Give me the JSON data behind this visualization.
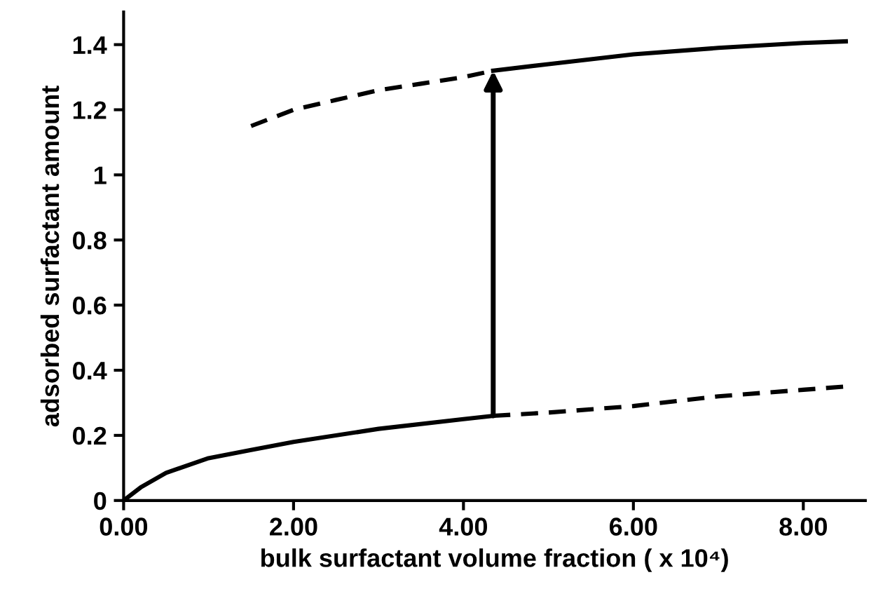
{
  "chart_data": {
    "type": "line",
    "xlabel": "bulk surfactant volume fraction ( x 10⁴)",
    "ylabel": "adsorbed surfactant amount",
    "xlim": [
      0,
      8.73
    ],
    "ylim": [
      0,
      1.5
    ],
    "xticks": [
      {
        "value": 0,
        "label": "0.00"
      },
      {
        "value": 2,
        "label": "2.00"
      },
      {
        "value": 4,
        "label": "4.00"
      },
      {
        "value": 6,
        "label": "6.00"
      },
      {
        "value": 8,
        "label": "8.00"
      }
    ],
    "yticks": [
      0,
      0.2,
      0.4,
      0.6,
      0.8,
      1,
      1.2,
      1.4
    ],
    "grid": false,
    "marker": "none",
    "series": [
      {
        "color": "#000000",
        "line_style": "solid",
        "x": [
          0,
          0.2,
          0.5,
          1,
          1.5,
          2,
          3,
          4,
          4.35
        ],
        "values": [
          0,
          0.04,
          0.085,
          0.13,
          0.155,
          0.18,
          0.22,
          0.25,
          0.26
        ]
      },
      {
        "color": "#000000",
        "line_style": "dashed",
        "x": [
          4.35,
          5,
          6,
          7,
          8,
          8.5
        ],
        "values": [
          0.26,
          0.27,
          0.29,
          0.32,
          0.34,
          0.35
        ]
      },
      {
        "color": "#000000",
        "line_style": "dashed",
        "x": [
          1.5,
          2,
          2.5,
          3,
          3.5,
          4,
          4.35
        ],
        "values": [
          1.15,
          1.2,
          1.23,
          1.26,
          1.28,
          1.3,
          1.32
        ]
      },
      {
        "color": "#000000",
        "line_style": "solid",
        "x": [
          4.35,
          5,
          6,
          7,
          8,
          8.5
        ],
        "values": [
          1.32,
          1.34,
          1.37,
          1.39,
          1.405,
          1.41
        ]
      }
    ]
  }
}
